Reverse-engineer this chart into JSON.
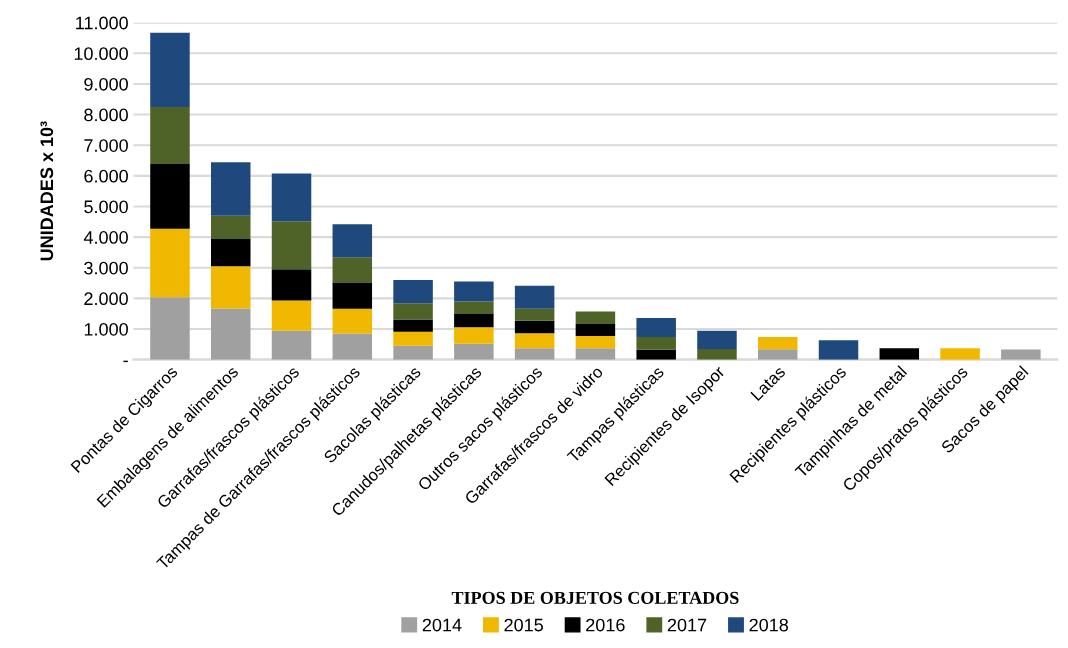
{
  "chart_data": {
    "type": "bar",
    "stacked": true,
    "xlabel": "TIPOS DE OBJETOS COLETADOS",
    "ylabel": "UNIDADES x 10³",
    "categories": [
      "Pontas de Cigarros",
      "Embalagens de alimentos",
      "Garrafas/frascos plásticos",
      "Tampas de Garrafas/frascos plásticos",
      "Sacolas plásticas",
      "Canudos/palhetas plásticas",
      "Outros sacos plásticos",
      "Garrafas/frascos de vidro",
      "Tampas plásticas",
      "Recipientes de Isopor",
      "Latas",
      "Recipientes plásticos",
      "Tampinhas de metal",
      "Copos/pratos plásticos",
      "Sacos de papel"
    ],
    "series": [
      {
        "name": "2014",
        "color": "#a0a0a0",
        "values": [
          2040,
          1670,
          940,
          850,
          450,
          520,
          370,
          370,
          null,
          null,
          340,
          null,
          null,
          null,
          330
        ]
      },
      {
        "name": "2015",
        "color": "#f0b800",
        "values": [
          2230,
          1380,
          990,
          810,
          460,
          540,
          490,
          400,
          null,
          null,
          400,
          null,
          null,
          370,
          null
        ]
      },
      {
        "name": "2016",
        "color": "#000000",
        "values": [
          2120,
          890,
          1020,
          840,
          400,
          430,
          410,
          390,
          320,
          null,
          null,
          null,
          370,
          null,
          null
        ]
      },
      {
        "name": "2017",
        "color": "#4f6228",
        "values": [
          1860,
          760,
          1570,
          840,
          530,
          410,
          390,
          410,
          420,
          350,
          null,
          null,
          null,
          null,
          null
        ]
      },
      {
        "name": "2018",
        "color": "#1f497d",
        "values": [
          2420,
          1740,
          1560,
          1080,
          760,
          650,
          750,
          null,
          620,
          590,
          null,
          630,
          null,
          null,
          null
        ]
      }
    ],
    "ylim": [
      0,
      11000
    ],
    "yticks": [
      {
        "value": 0,
        "label": "-"
      },
      {
        "value": 1000,
        "label": "1.000"
      },
      {
        "value": 2000,
        "label": "2.000"
      },
      {
        "value": 3000,
        "label": "3.000"
      },
      {
        "value": 4000,
        "label": "4.000"
      },
      {
        "value": 5000,
        "label": "5.000"
      },
      {
        "value": 6000,
        "label": "6.000"
      },
      {
        "value": 7000,
        "label": "7.000"
      },
      {
        "value": 8000,
        "label": "8.000"
      },
      {
        "value": 9000,
        "label": "9.000"
      },
      {
        "value": 10000,
        "label": "10.000"
      },
      {
        "value": 11000,
        "label": "11.000"
      }
    ],
    "grid": "y",
    "legend": "bottom"
  }
}
